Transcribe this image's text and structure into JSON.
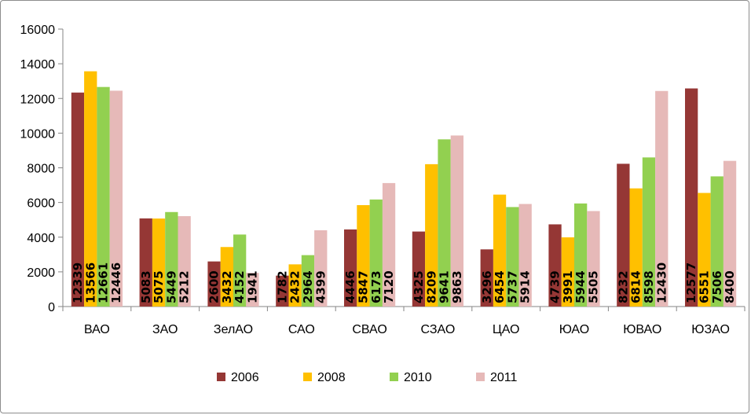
{
  "chart_data": {
    "type": "bar",
    "title": "",
    "xlabel": "",
    "ylabel": "",
    "ylim": [
      0,
      16000
    ],
    "yticks": [
      0,
      2000,
      4000,
      6000,
      8000,
      10000,
      12000,
      14000,
      16000
    ],
    "grid": false,
    "legend_position": "bottom",
    "categories": [
      "ВАО",
      "ЗАО",
      "ЗелАО",
      "САО",
      "СВАО",
      "СЗАО",
      "ЦАО",
      "ЮАО",
      "ЮВАО",
      "ЮЗАО"
    ],
    "series": [
      {
        "name": "2006",
        "color": "#953735",
        "values": [
          12339,
          5083,
          2600,
          1782,
          4446,
          4325,
          3296,
          4739,
          8232,
          12577
        ]
      },
      {
        "name": "2008",
        "color": "#ffc000",
        "values": [
          13566,
          5075,
          3432,
          2432,
          5847,
          8209,
          6454,
          3991,
          6814,
          6551
        ]
      },
      {
        "name": "2010",
        "color": "#92d050",
        "values": [
          12661,
          5449,
          4152,
          2964,
          6173,
          9641,
          5737,
          5944,
          8598,
          7506
        ]
      },
      {
        "name": "2011",
        "color": "#e6b9b8",
        "values": [
          12446,
          5212,
          1941,
          4399,
          7120,
          9863,
          5914,
          5505,
          12430,
          8400
        ]
      }
    ],
    "axis_color": "#868686"
  }
}
